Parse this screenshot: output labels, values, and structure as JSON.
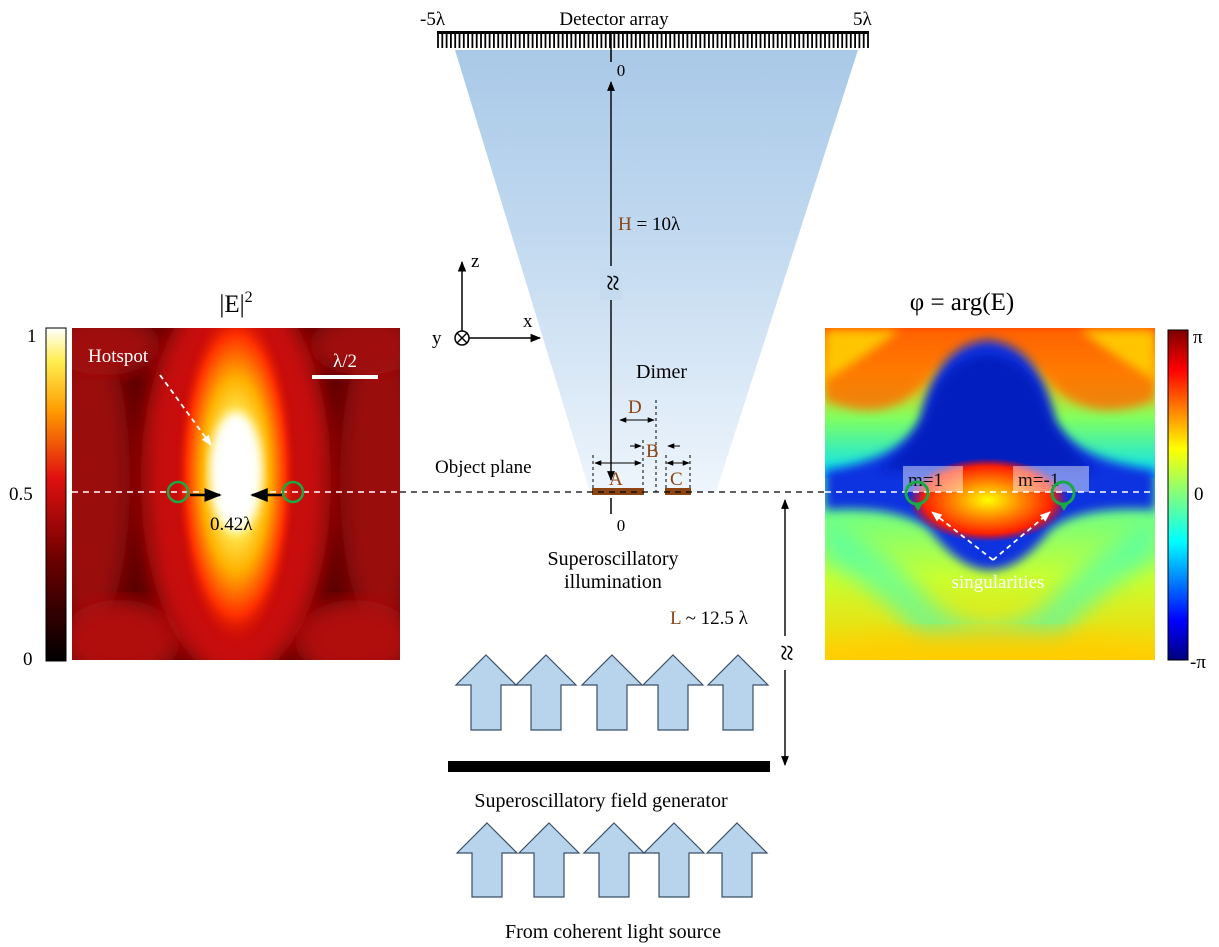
{
  "detector": {
    "title": "Detector array",
    "left_tick": "-5λ",
    "right_tick": "5λ",
    "center_tick": "0"
  },
  "distances": {
    "H_symbol": "H",
    "H_value": " = 10λ",
    "L_symbol": "L",
    "L_value": " ~ 12.5 λ",
    "approx": "≈"
  },
  "axes": {
    "z": "z",
    "x": "x",
    "y": "y"
  },
  "dimer": {
    "title": "Dimer",
    "label_A": "A",
    "label_B": "B",
    "label_C": "C",
    "label_D": "D",
    "object_zero": "0"
  },
  "object_plane": "Object plane",
  "illumination": {
    "line1": "Superoscillatory",
    "line2": "illumination"
  },
  "generator": "Superoscillatory field generator",
  "source": "From coherent light source",
  "intensity_map": {
    "title_base": "|E|",
    "title_exp": "2",
    "hotspot": "Hotspot",
    "scalebar": "λ/2",
    "spacing": "0.42λ",
    "cbar_top": "1",
    "cbar_mid": "0.5",
    "cbar_bottom": "0"
  },
  "phase_map": {
    "title": "φ = arg(E)",
    "m_left": "m=1",
    "m_right": "m=-1",
    "singularities": "singularities",
    "cbar_top": "π",
    "cbar_mid": "0",
    "cbar_bottom": "-π"
  },
  "colors": {
    "brown": "#8a4513",
    "green_ring": "#1aa845",
    "arrow_fill": "#b8d4ec",
    "arrow_stroke": "#3a4f66"
  }
}
